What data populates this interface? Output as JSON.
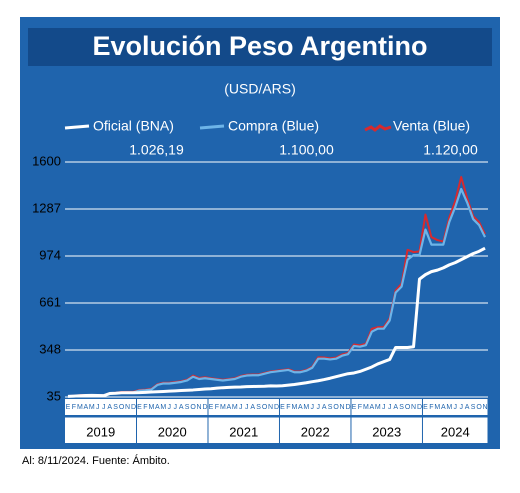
{
  "chart_data": {
    "type": "line",
    "title": "Evolución Peso Argentino",
    "subtitle": "(USD/ARS)",
    "source": "Al: 8/11/2024. Fuente: Ámbito.",
    "categories": [
      "E",
      "F",
      "M",
      "A",
      "M",
      "J",
      "J",
      "A",
      "S",
      "O",
      "N",
      "D",
      "E",
      "F",
      "M",
      "A",
      "M",
      "J",
      "J",
      "A",
      "S",
      "O",
      "N",
      "D",
      "E",
      "F",
      "M",
      "A",
      "M",
      "J",
      "J",
      "A",
      "S",
      "O",
      "N",
      "D",
      "E",
      "F",
      "M",
      "A",
      "M",
      "J",
      "J",
      "A",
      "S",
      "O",
      "N",
      "D",
      "E",
      "F",
      "M",
      "A",
      "M",
      "J",
      "J",
      "A",
      "S",
      "O",
      "N",
      "D",
      "E",
      "F",
      "M",
      "A",
      "M",
      "J",
      "J",
      "A",
      "S",
      "O",
      "N"
    ],
    "years": [
      "2019",
      "2020",
      "2021",
      "2022",
      "2023",
      "2024"
    ],
    "ylim": [
      35,
      1600
    ],
    "yticks": [
      35,
      348,
      661,
      974,
      1287,
      1600
    ],
    "grid": true,
    "series": [
      {
        "name": "Oficial (BNA)",
        "color": "#ffffff",
        "value_label": "1.026,19",
        "values": [
          39,
          41,
          43,
          45,
          46,
          45,
          44,
          58,
          60,
          63,
          63,
          63,
          64,
          66,
          68,
          70,
          72,
          74,
          76,
          78,
          80,
          82,
          85,
          88,
          90,
          94,
          97,
          99,
          101,
          102,
          104,
          105,
          106,
          107,
          109,
          108,
          110,
          114,
          118,
          124,
          130,
          137,
          143,
          151,
          160,
          170,
          180,
          190,
          195,
          205,
          220,
          235,
          255,
          270,
          285,
          365,
          365,
          365,
          370,
          820,
          850,
          870,
          880,
          895,
          915,
          930,
          950,
          970,
          990,
          1005,
          1026.19
        ]
      },
      {
        "name": "Compra (Blue)",
        "color": "#6db4e8",
        "value_label": "1.100,00",
        "values": [
          38,
          40,
          44,
          45,
          45,
          44,
          43,
          57,
          60,
          64,
          65,
          66,
          78,
          80,
          85,
          115,
          125,
          125,
          130,
          135,
          145,
          170,
          155,
          160,
          155,
          150,
          145,
          150,
          155,
          170,
          178,
          180,
          180,
          190,
          200,
          205,
          210,
          215,
          200,
          200,
          210,
          230,
          290,
          290,
          285,
          290,
          310,
          320,
          375,
          370,
          380,
          470,
          490,
          490,
          545,
          730,
          770,
          950,
          980,
          980,
          1150,
          1050,
          1050,
          1050,
          1200,
          1300,
          1420,
          1330,
          1220,
          1180,
          1100
        ]
      },
      {
        "name": "Venta (Blue)",
        "color": "#d62a2f",
        "value_label": "1.120,00",
        "values": [
          41,
          43,
          47,
          48,
          48,
          47,
          46,
          60,
          63,
          68,
          69,
          70,
          82,
          84,
          90,
          120,
          130,
          130,
          135,
          140,
          150,
          178,
          162,
          167,
          160,
          155,
          150,
          155,
          160,
          175,
          183,
          185,
          185,
          195,
          205,
          210,
          215,
          220,
          205,
          205,
          215,
          236,
          300,
          298,
          292,
          297,
          318,
          328,
          385,
          380,
          390,
          490,
          500,
          500,
          560,
          745,
          790,
          1015,
          1000,
          1005,
          1250,
          1100,
          1080,
          1070,
          1230,
          1340,
          1500,
          1360,
          1240,
          1200,
          1120
        ]
      }
    ]
  }
}
